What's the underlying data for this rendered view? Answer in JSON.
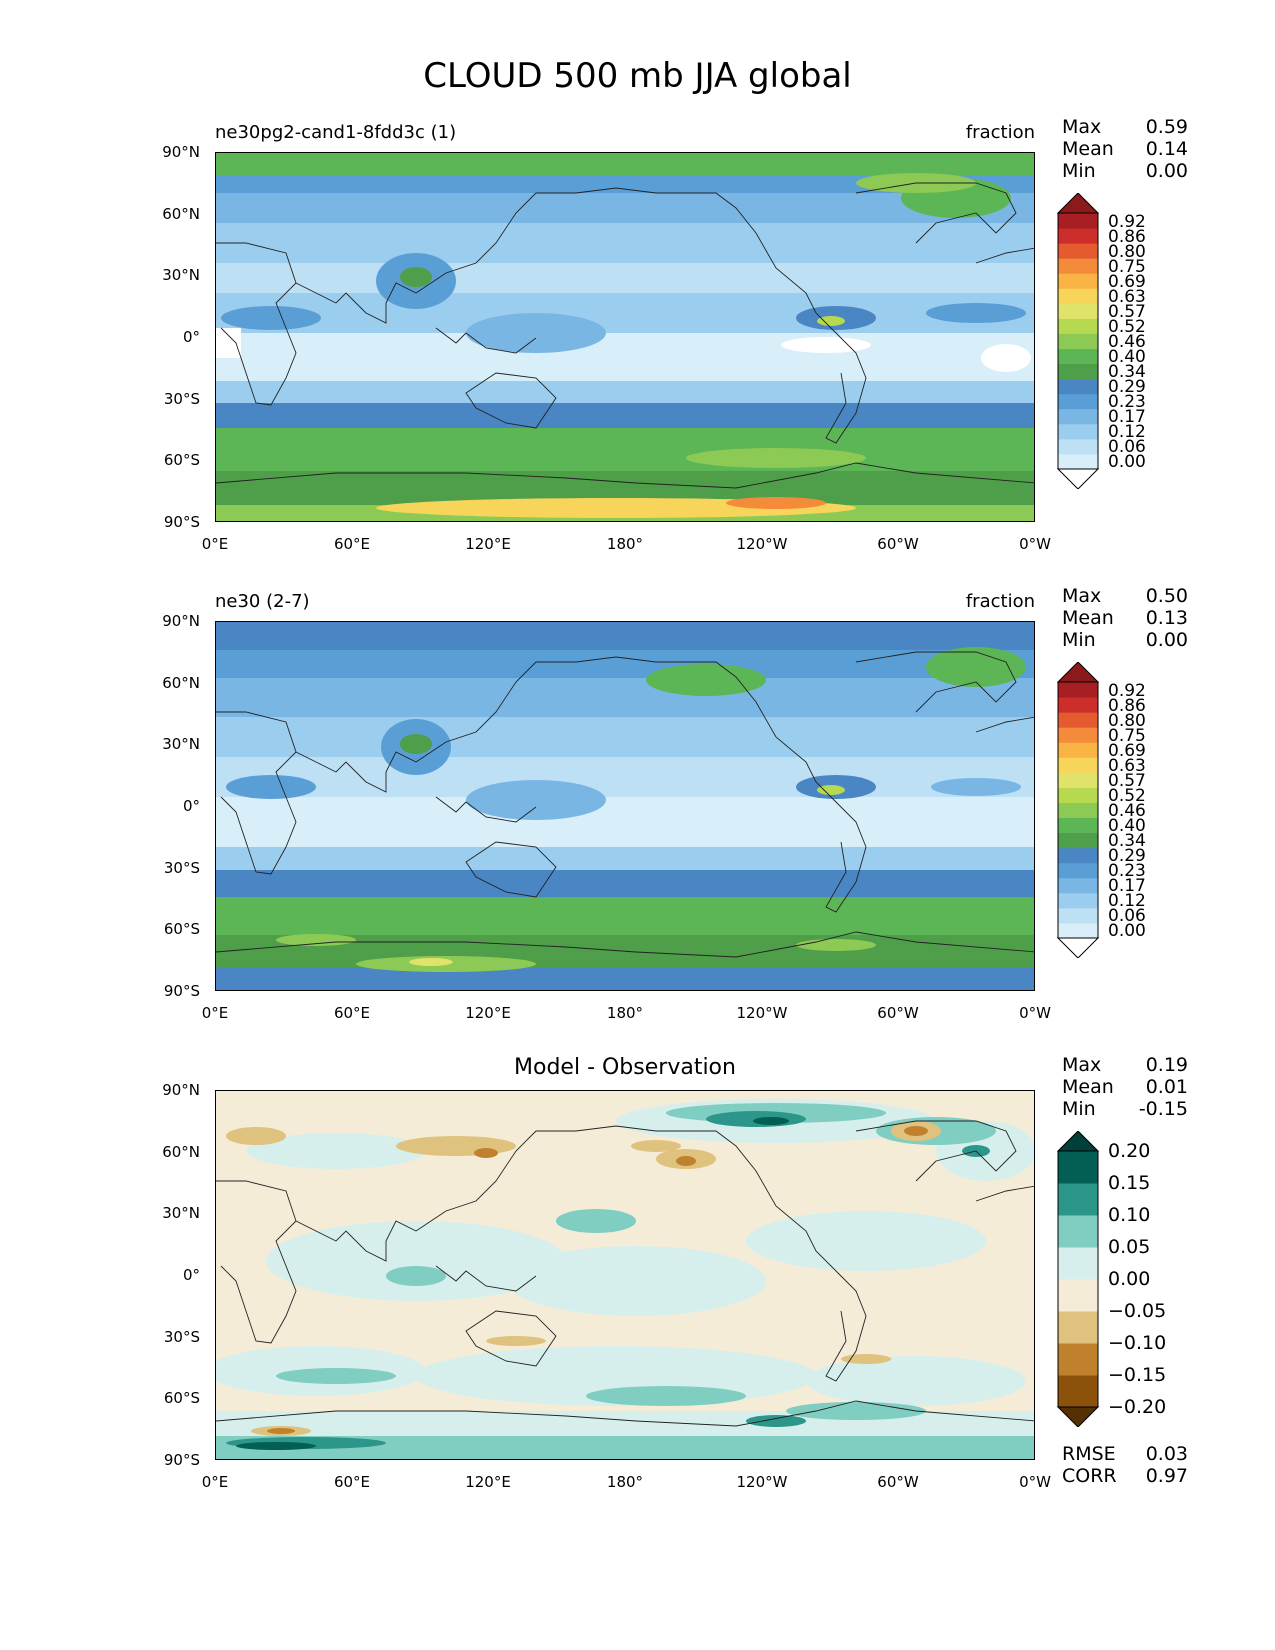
{
  "figure_title": "CLOUD 500 mb JJA global",
  "panels": [
    {
      "title_left": "ne30pg2-cand1-8fdd3c (1)",
      "units": "fraction",
      "stats": {
        "max_label": "Max",
        "max": "0.59",
        "mean_label": "Mean",
        "mean": "0.14",
        "min_label": "Min",
        "min": "0.00"
      }
    },
    {
      "title_left": "ne30 (2-7)",
      "units": "fraction",
      "stats": {
        "max_label": "Max",
        "max": "0.50",
        "mean_label": "Mean",
        "mean": "0.13",
        "min_label": "Min",
        "min": "0.00"
      }
    },
    {
      "title_center": "Model - Observation",
      "stats": {
        "max_label": "Max",
        "max": "0.19",
        "mean_label": "Mean",
        "mean": "0.01",
        "min_label": "Min",
        "min": "-0.15"
      },
      "rmse_label": "RMSE",
      "rmse": "0.03",
      "corr_label": "CORR",
      "corr": "0.97"
    }
  ],
  "yticks": [
    "90°N",
    "60°N",
    "30°N",
    "0°",
    "30°S",
    "60°S",
    "90°S"
  ],
  "xticks": [
    "0°E",
    "60°E",
    "120°E",
    "180°",
    "120°W",
    "60°W",
    "0°W"
  ],
  "colorbar_fraction": {
    "levels": [
      "0.92",
      "0.86",
      "0.80",
      "0.75",
      "0.69",
      "0.63",
      "0.57",
      "0.52",
      "0.46",
      "0.40",
      "0.34",
      "0.29",
      "0.23",
      "0.17",
      "0.12",
      "0.06",
      "0.00"
    ],
    "colors": [
      "#ffffff",
      "#d8eef9",
      "#bde0f5",
      "#9bcdee",
      "#7ab6e4",
      "#5a9ed6",
      "#4a86c3",
      "#4f9e4a",
      "#5cb655",
      "#8dc955",
      "#b7d94f",
      "#e0e26a",
      "#f6d55a",
      "#f9b445",
      "#f38b3b",
      "#e45b30",
      "#cc2e2b",
      "#a81f23",
      "#8c1a1a"
    ],
    "color_names": [
      "white",
      "lightest-blue",
      "light-blue",
      "sky-blue",
      "mid-blue",
      "blue",
      "steel-blue",
      "green",
      "mid-green",
      "light-green",
      "yellow-green",
      "khaki",
      "yellow",
      "light-orange",
      "orange",
      "red-orange",
      "red",
      "dark-red",
      "maroon"
    ]
  },
  "colorbar_diff": {
    "levels": [
      "0.20",
      "0.15",
      "0.10",
      "0.05",
      "0.00",
      "−0.05",
      "−0.10",
      "−0.15",
      "−0.20"
    ],
    "colors": [
      "#01403a",
      "#035e53",
      "#2c968a",
      "#80cdc1",
      "#d7efec",
      "#f5ecd8",
      "#dfc27d",
      "#bf812d",
      "#8c510a",
      "#543005"
    ]
  }
}
